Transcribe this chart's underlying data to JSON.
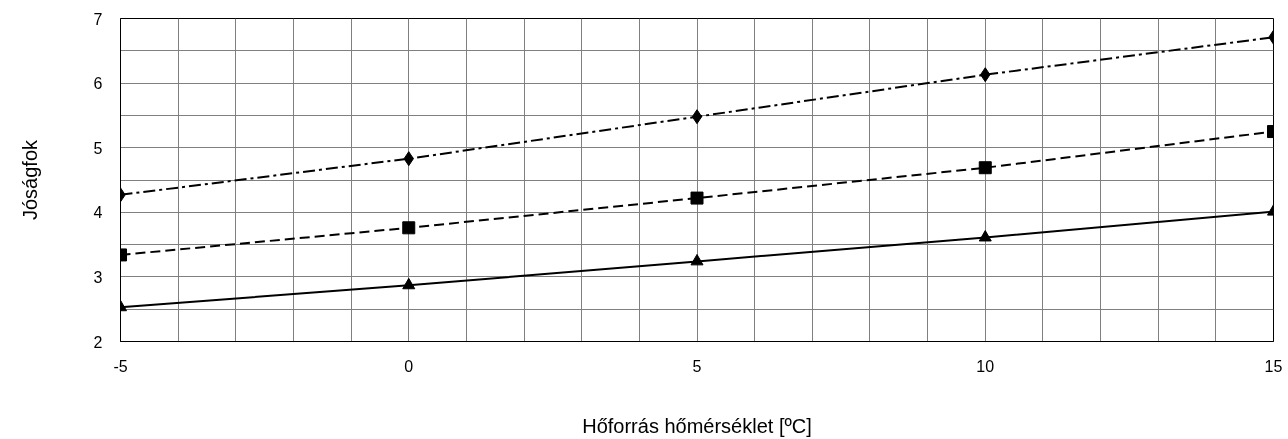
{
  "chart_data": {
    "type": "line",
    "xlabel": "Hőforrás hőmérséklet [ºC]",
    "ylabel": "Jóságfok",
    "x": [
      -5,
      0,
      5,
      10,
      15
    ],
    "series": [
      {
        "color": "#000000",
        "marker": "diamond",
        "line_style": "dashdot",
        "values": [
          4.27,
          4.83,
          5.48,
          6.13,
          6.71
        ]
      },
      {
        "color": "#000000",
        "marker": "square",
        "line_style": "dashed",
        "values": [
          3.34,
          3.76,
          4.22,
          4.69,
          5.25
        ]
      },
      {
        "color": "#000000",
        "marker": "triangle",
        "line_style": "solid",
        "values": [
          2.53,
          2.87,
          3.24,
          3.61,
          4.01
        ]
      }
    ],
    "xlim": [
      -5,
      15
    ],
    "ylim": [
      2,
      7
    ],
    "xticks": [
      -5,
      {
        "value": -4,
        "label": null
      },
      {
        "value": -3,
        "label": null
      },
      {
        "value": -2,
        "label": null
      },
      {
        "value": -1,
        "label": null
      },
      0,
      {
        "value": 1,
        "label": null
      },
      {
        "value": 2,
        "label": null
      },
      {
        "value": 3,
        "label": null
      },
      {
        "value": 4,
        "label": null
      },
      5,
      {
        "value": 6,
        "label": null
      },
      {
        "value": 7,
        "label": null
      },
      {
        "value": 8,
        "label": null
      },
      {
        "value": 9,
        "label": null
      },
      10,
      {
        "value": 11,
        "label": null
      },
      {
        "value": 12,
        "label": null
      },
      {
        "value": 13,
        "label": null
      },
      {
        "value": 14,
        "label": null
      },
      15
    ],
    "yticks": [
      2,
      {
        "value": 2.5,
        "label": null
      },
      3,
      {
        "value": 3.5,
        "label": null
      },
      4,
      {
        "value": 4.5,
        "label": null
      },
      5,
      {
        "value": 5.5,
        "label": null
      },
      6,
      {
        "value": 6.5,
        "label": null
      },
      7
    ],
    "grid": true
  }
}
